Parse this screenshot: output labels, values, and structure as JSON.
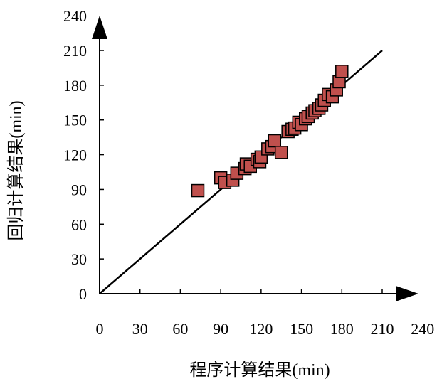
{
  "chart_data": {
    "type": "scatter",
    "xlabel": "程序计算结果(min)",
    "ylabel": "回归计算结果(min)",
    "xlim": [
      0,
      240
    ],
    "ylim": [
      0,
      240
    ],
    "x_ticks": [
      "0",
      "30",
      "60",
      "90",
      "120",
      "150",
      "180",
      "210",
      "240"
    ],
    "y_ticks": [
      "0",
      "30",
      "60",
      "90",
      "120",
      "150",
      "180",
      "210",
      "240"
    ],
    "grid": false,
    "legend": "none",
    "marker": "square",
    "marker_color": "#c0504d",
    "marker_edge_color": "#000000",
    "reference_line": {
      "x": [
        0,
        210
      ],
      "y": [
        0,
        210
      ],
      "color": "#000000"
    },
    "series": [
      {
        "points": [
          [
            73,
            89
          ],
          [
            90,
            100
          ],
          [
            93,
            96
          ],
          [
            99,
            98
          ],
          [
            102,
            104
          ],
          [
            108,
            108
          ],
          [
            109,
            112
          ],
          [
            112,
            110
          ],
          [
            117,
            116
          ],
          [
            119,
            114
          ],
          [
            120,
            118
          ],
          [
            125,
            125
          ],
          [
            128,
            127
          ],
          [
            130,
            132
          ],
          [
            135,
            122
          ],
          [
            140,
            140
          ],
          [
            143,
            142
          ],
          [
            145,
            143
          ],
          [
            148,
            148
          ],
          [
            150,
            146
          ],
          [
            153,
            151
          ],
          [
            155,
            153
          ],
          [
            158,
            156
          ],
          [
            160,
            158
          ],
          [
            163,
            160
          ],
          [
            165,
            163
          ],
          [
            167,
            167
          ],
          [
            170,
            172
          ],
          [
            173,
            170
          ],
          [
            176,
            176
          ],
          [
            178,
            183
          ],
          [
            180,
            192
          ]
        ]
      }
    ]
  }
}
